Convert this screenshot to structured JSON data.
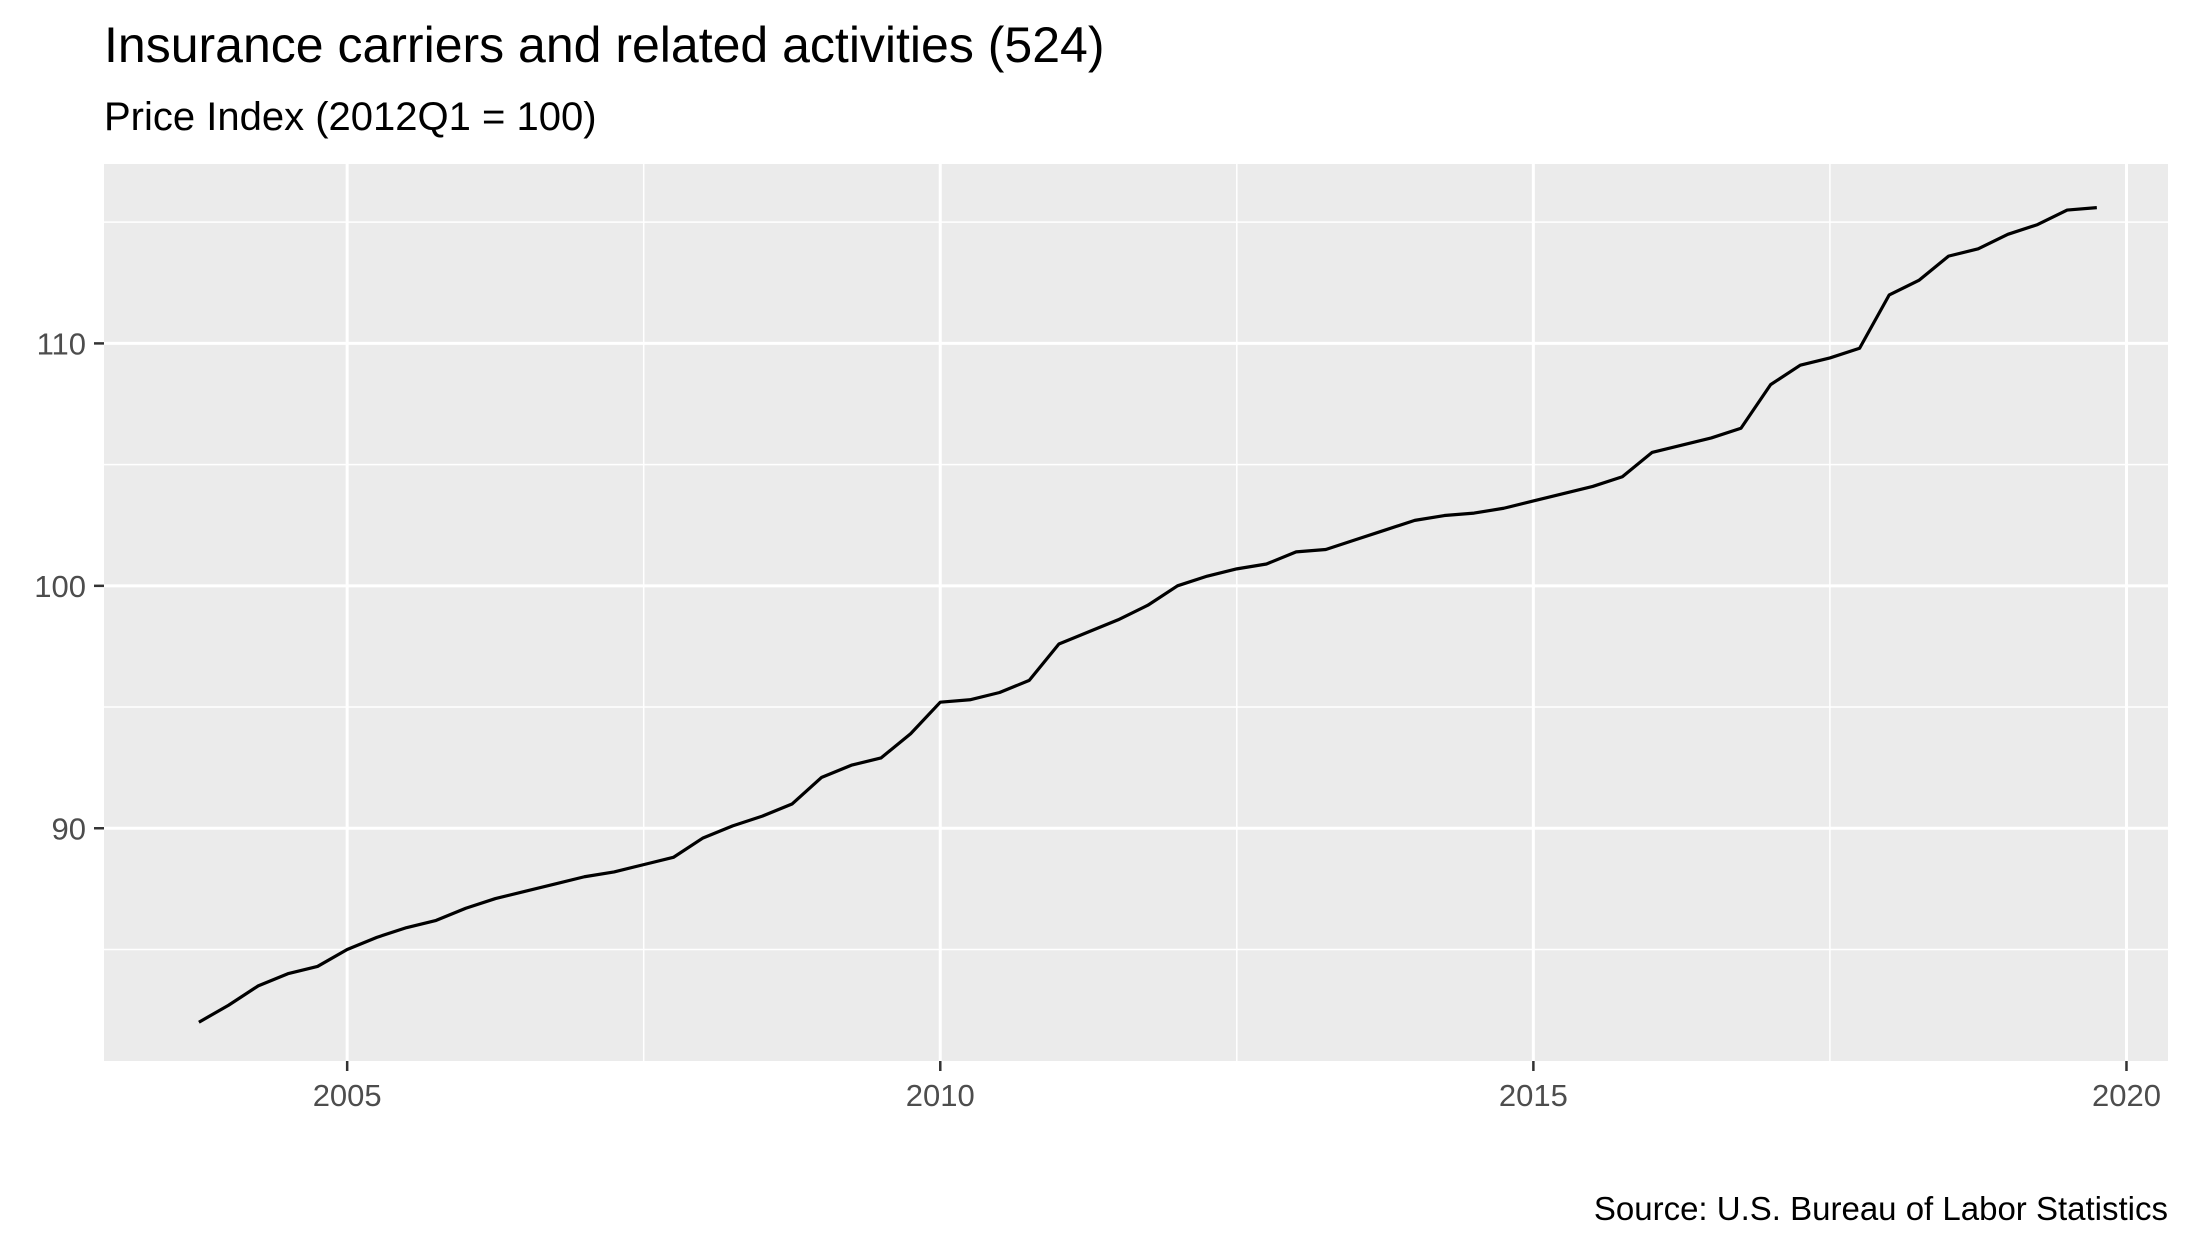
{
  "chart_data": {
    "type": "line",
    "title": "Insurance carriers and related activities (524)",
    "subtitle": "Price Index (2012Q1 = 100)",
    "caption": "Source: U.S. Bureau of Labor Statistics",
    "xlabel": "",
    "ylabel": "",
    "xlim": [
      2002.95,
      2020.35
    ],
    "ylim": [
      80.4,
      117.4
    ],
    "x_ticks": [
      2005,
      2010,
      2015,
      2020
    ],
    "y_ticks": [
      90,
      100,
      110
    ],
    "x_minor_ticks": [
      2007.5,
      2012.5,
      2017.5
    ],
    "y_minor_ticks": [
      85,
      95,
      105,
      115
    ],
    "grid": true,
    "legend": "none",
    "colors": {
      "panel": "#ebebeb",
      "grid": "#ffffff",
      "line": "#000000"
    },
    "series": [
      {
        "x": [
          2003.75,
          2004.0,
          2004.25,
          2004.5,
          2004.75,
          2005.0,
          2005.25,
          2005.5,
          2005.75,
          2006.0,
          2006.25,
          2006.5,
          2006.75,
          2007.0,
          2007.25,
          2007.5,
          2007.75,
          2008.0,
          2008.25,
          2008.5,
          2008.75,
          2009.0,
          2009.25,
          2009.5,
          2009.75,
          2010.0,
          2010.25,
          2010.5,
          2010.75,
          2011.0,
          2011.25,
          2011.5,
          2011.75,
          2012.0,
          2012.25,
          2012.5,
          2012.75,
          2013.0,
          2013.25,
          2013.5,
          2013.75,
          2014.0,
          2014.25,
          2014.5,
          2014.75,
          2015.0,
          2015.25,
          2015.5,
          2015.75,
          2016.0,
          2016.25,
          2016.5,
          2016.75,
          2017.0,
          2017.25,
          2017.5,
          2017.75,
          2018.0,
          2018.25,
          2018.5,
          2018.75,
          2019.0,
          2019.25,
          2019.5,
          2019.75
        ],
        "values": [
          82.0,
          82.7,
          83.5,
          84.0,
          84.3,
          85.0,
          85.5,
          85.9,
          86.2,
          86.7,
          87.1,
          87.4,
          87.7,
          88.0,
          88.2,
          88.5,
          88.8,
          89.6,
          90.1,
          90.5,
          91.0,
          92.1,
          92.6,
          92.9,
          93.9,
          95.2,
          95.3,
          95.6,
          96.1,
          97.6,
          98.1,
          98.6,
          99.2,
          100.0,
          100.4,
          100.7,
          100.9,
          101.4,
          101.5,
          101.9,
          102.3,
          102.7,
          102.9,
          103.0,
          103.2,
          103.5,
          103.8,
          104.1,
          104.5,
          105.5,
          105.8,
          106.1,
          106.5,
          108.3,
          109.1,
          109.4,
          109.8,
          112.0,
          112.6,
          113.6,
          113.9,
          114.5,
          114.9,
          115.5,
          115.6
        ]
      }
    ]
  }
}
